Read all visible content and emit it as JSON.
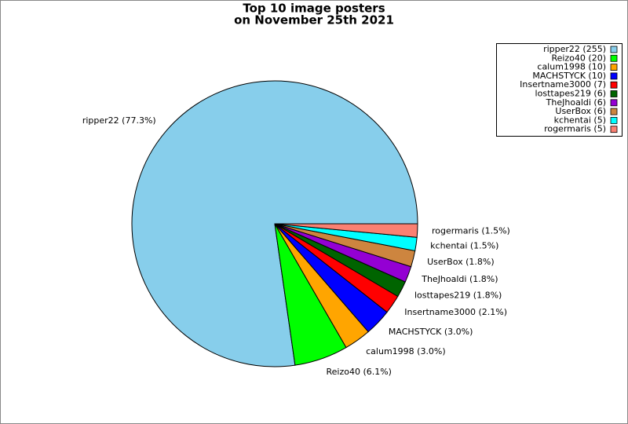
{
  "chart_data": {
    "type": "pie",
    "title": "Top 10 image posters",
    "subtitle": "on November 25th 2021",
    "categories": [
      "ripper22",
      "Reizo40",
      "calum1998",
      "MACHSTYCK",
      "Insertname3000",
      "losttapes219",
      "TheJhoaldi",
      "UserBox",
      "kchentai",
      "rogermaris"
    ],
    "values": [
      255,
      20,
      10,
      10,
      7,
      6,
      6,
      6,
      5,
      5
    ],
    "slice_labels": [
      "ripper22 (77.3%)",
      "Reizo40 (6.1%)",
      "calum1998 (3.0%)",
      "MACHSTYCK (3.0%)",
      "Insertname3000 (2.1%)",
      "losttapes219 (1.8%)",
      "TheJhoaldi (1.8%)",
      "UserBox (1.8%)",
      "kchentai (1.5%)",
      "rogermaris (1.5%)"
    ],
    "legend_labels": [
      "ripper22 (255)",
      "Reizo40 (20)",
      "calum1998 (10)",
      "MACHSTYCK (10)",
      "Insertname3000 (7)",
      "losttapes219 (6)",
      "TheJhoaldi (6)",
      "UserBox (6)",
      "kchentai (5)",
      "rogermaris (5)"
    ],
    "colors": [
      "#87ceeb",
      "#00ff00",
      "#ffa500",
      "#0000ff",
      "#ff0000",
      "#006400",
      "#9400d3",
      "#cd853f",
      "#00ffff",
      "#fa8072"
    ],
    "legend": "upper right"
  }
}
